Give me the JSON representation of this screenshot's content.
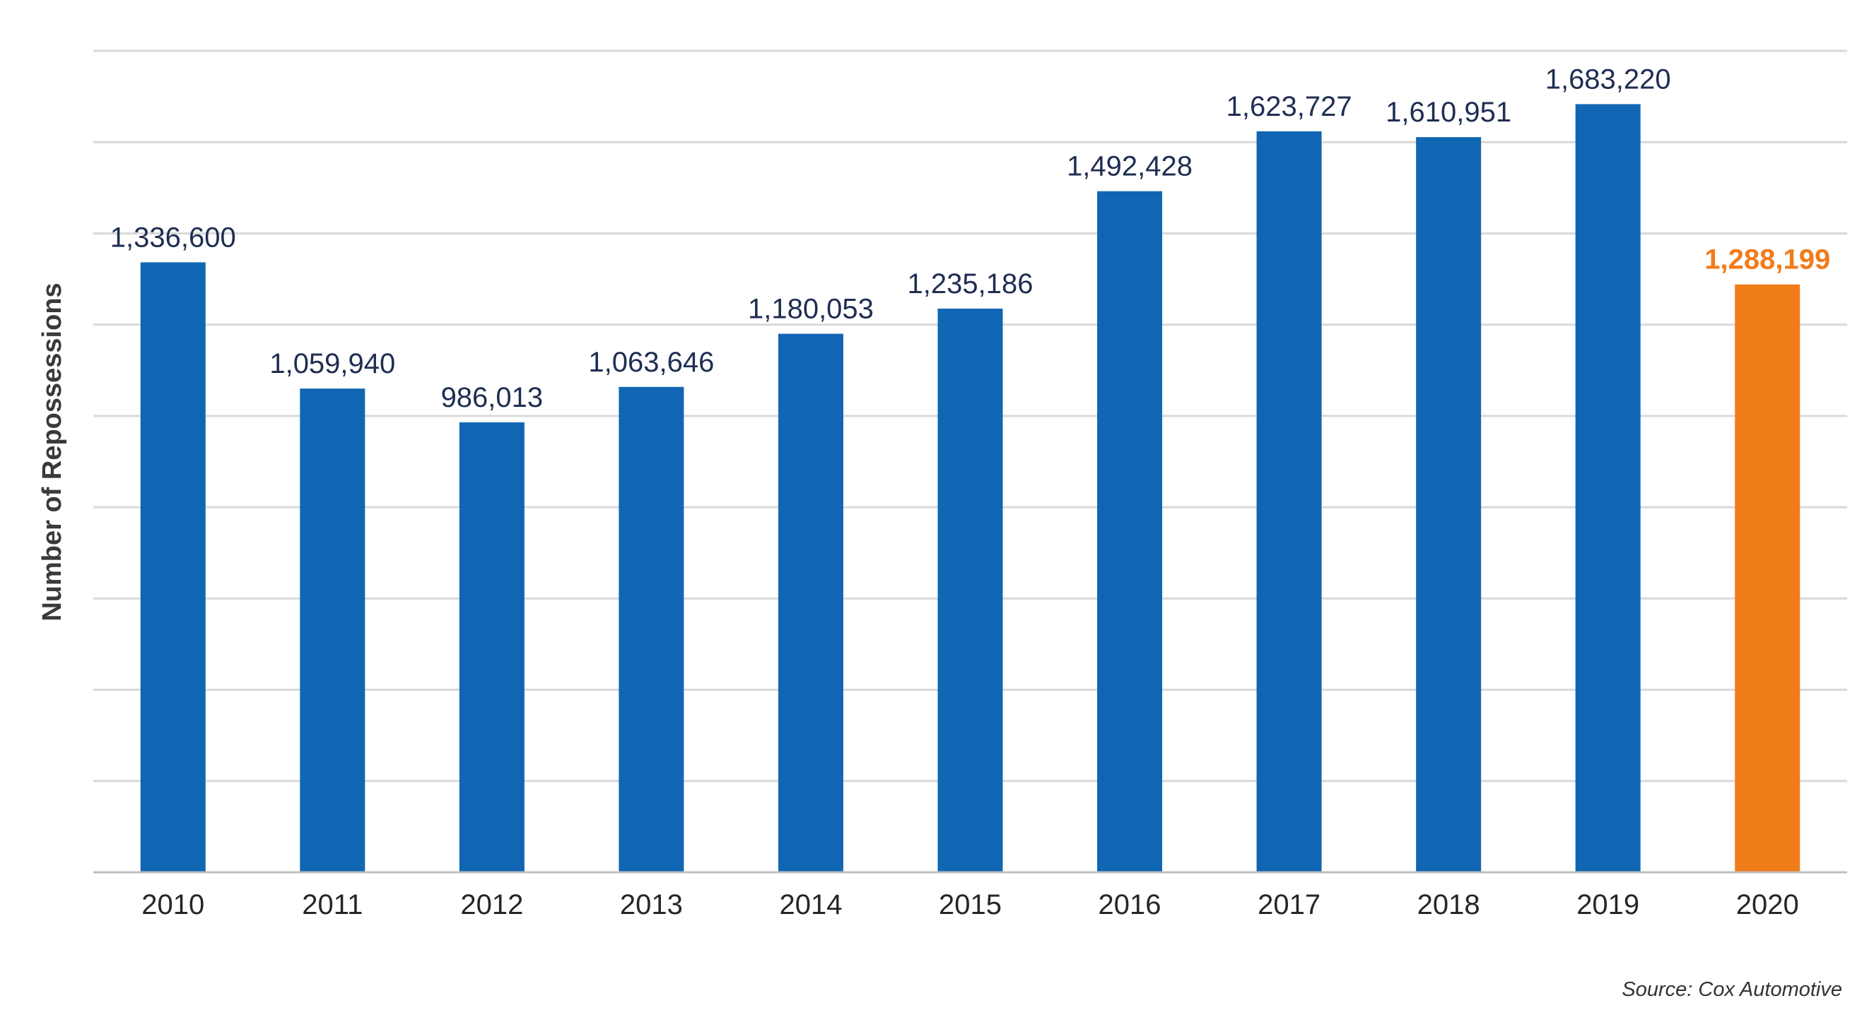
{
  "chart_data": {
    "type": "bar",
    "title": "",
    "xlabel": "",
    "ylabel": "Number of  Repossessions",
    "categories": [
      "2010",
      "2011",
      "2012",
      "2013",
      "2014",
      "2015",
      "2016",
      "2017",
      "2018",
      "2019",
      "2020"
    ],
    "values": [
      1336600,
      1059940,
      986013,
      1063646,
      1180053,
      1235186,
      1492428,
      1623727,
      1610951,
      1683220,
      1288199
    ],
    "data_labels": [
      "1,336,600",
      "1,059,940",
      "986,013",
      "1,063,646",
      "1,180,053",
      "1,235,186",
      "1,492,428",
      "1,623,727",
      "1,610,951",
      "1,683,220",
      "1,288,199"
    ],
    "highlight_index": 10,
    "ylim": [
      0,
      1800000
    ],
    "grid": true,
    "y_tick_labels_visible": false,
    "colors": {
      "bar": "#1166b3",
      "highlight": "#f07c1a",
      "label": "#1f2d52",
      "highlight_label": "#f07c1a",
      "grid": "#d9d9d9",
      "axis": "#bfbfbf"
    },
    "source": "Source: Cox Automotive"
  }
}
